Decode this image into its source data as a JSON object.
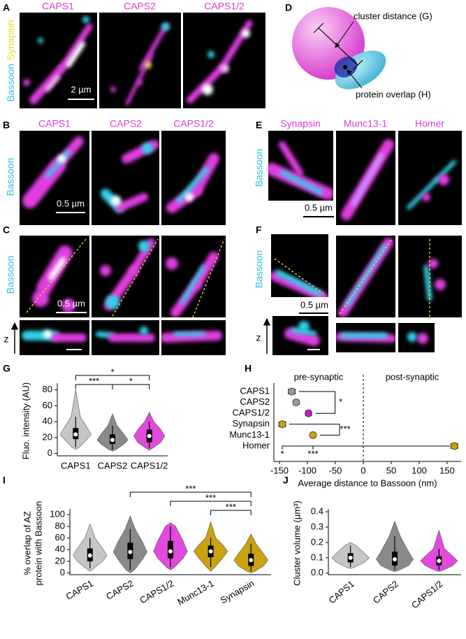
{
  "panel_labels": [
    "A",
    "B",
    "C",
    "D",
    "E",
    "F",
    "G",
    "H",
    "I",
    "J"
  ],
  "panel_A": {
    "titles": [
      "CAPS1",
      "CAPS2",
      "CAPS1/2"
    ],
    "channels": [
      "Bassoon",
      "Synapsin"
    ],
    "scale_bar": "2 µm"
  },
  "panel_B": {
    "titles": [
      "CAPS1",
      "CAPS2",
      "CAPS1/2"
    ],
    "channel": "Bassoon",
    "scale_bar": "0.5 µm"
  },
  "panel_C": {
    "channel": "Bassoon",
    "scale_bar": "0.5 µm",
    "axis": "z"
  },
  "panel_D": {
    "labels": [
      "cluster distance (G)",
      "protein overlap (H)"
    ]
  },
  "panel_E": {
    "titles": [
      "Synapsin",
      "Munc13-1",
      "Homer"
    ],
    "channel": "Bassoon",
    "scale_bar": "0.5 µm"
  },
  "panel_F": {
    "channel": "Bassoon",
    "scale_bar": "0.5 µm",
    "axis": "z"
  },
  "chart_data": [
    {
      "type": "violin",
      "ylabel": "Fluo. intensity (AU)",
      "categories": [
        "CAPS1",
        "CAPS2",
        "CAPS1/2"
      ],
      "colors": [
        "#c6c6c6",
        "#8a8a8a",
        "#e24ade"
      ],
      "stats": [
        {
          "min": 5,
          "whisker_low": 8,
          "q1": 18,
          "median": 24,
          "q3": 32,
          "whisker_high": 46,
          "max": 80
        },
        {
          "min": 3,
          "whisker_low": 5,
          "q1": 12,
          "median": 17,
          "q3": 24,
          "whisker_high": 35,
          "max": 50
        },
        {
          "min": 4,
          "whisker_low": 7,
          "q1": 14,
          "median": 22,
          "q3": 30,
          "whisker_high": 40,
          "max": 52
        }
      ],
      "ylim": [
        -3,
        85
      ],
      "yticks": [
        0,
        20,
        40,
        60,
        80
      ],
      "significance": [
        {
          "from": 0,
          "to": 1,
          "label": "***"
        },
        {
          "from": 0,
          "to": 2,
          "label": "*"
        },
        {
          "from": 1,
          "to": 2,
          "label": "*"
        }
      ]
    },
    {
      "type": "dot",
      "xlabel": "Average distance to Bassoon (nm)",
      "categories": [
        "CAPS1",
        "CAPS2",
        "CAPS1/2",
        "Synapsin",
        "Munc13-1",
        "Homer"
      ],
      "values": [
        -128,
        -120,
        -98,
        -145,
        -90,
        163
      ],
      "errors": [
        6,
        5,
        5,
        6,
        4,
        6
      ],
      "colors": [
        "#9a9a9a",
        "#9a9a9a",
        "#c21cc2",
        "#c9a20c",
        "#c9a20c",
        "#c9a20c"
      ],
      "xlim": [
        -160,
        175
      ],
      "xticks": [
        -150,
        -100,
        -50,
        0,
        50,
        100,
        150
      ],
      "reference_line": 0,
      "annotations": [
        "pre-synaptic",
        "post-synaptic"
      ],
      "significance": [
        {
          "from": 0,
          "to": 2,
          "label": "*"
        },
        {
          "from": 3,
          "to": 4,
          "label": "***"
        },
        {
          "from": 3,
          "to": 5,
          "label": "*"
        },
        {
          "from": 4,
          "to": 5,
          "label": "***"
        }
      ]
    },
    {
      "type": "violin",
      "ylabel": [
        "% overlap of AZ",
        "protein with Bassoon"
      ],
      "categories": [
        "CAPS1",
        "CAPS2",
        "CAPS1/2",
        "Munc13-1",
        "Synapsin"
      ],
      "colors": [
        "#c6c6c6",
        "#8a8a8a",
        "#e24ade",
        "#c9a20c",
        "#c9a20c"
      ],
      "stats": [
        {
          "min": 3,
          "whisker_low": 8,
          "q1": 20,
          "median": 30,
          "q3": 42,
          "whisker_high": 60,
          "max": 84
        },
        {
          "min": 0,
          "whisker_low": 5,
          "q1": 24,
          "median": 36,
          "q3": 52,
          "whisker_high": 75,
          "max": 98
        },
        {
          "min": 5,
          "whisker_low": 10,
          "q1": 25,
          "median": 37,
          "q3": 55,
          "whisker_high": 80,
          "max": 86
        },
        {
          "min": 3,
          "whisker_low": 10,
          "q1": 27,
          "median": 37,
          "q3": 47,
          "whisker_high": 60,
          "max": 88
        },
        {
          "min": 0,
          "whisker_low": 3,
          "q1": 12,
          "median": 22,
          "q3": 33,
          "whisker_high": 50,
          "max": 67
        }
      ],
      "ylim": [
        -3,
        105
      ],
      "yticks": [
        0,
        20,
        40,
        60,
        80,
        100
      ],
      "xtick_rotation": -30,
      "significance": [
        {
          "from": 1,
          "to": 4,
          "label": "***"
        },
        {
          "from": 2,
          "to": 4,
          "label": "***"
        },
        {
          "from": 3,
          "to": 4,
          "label": "***"
        }
      ]
    },
    {
      "type": "violin",
      "ylabel": "Cluster volume (µm³)",
      "categories": [
        "CAPS1",
        "CAPS2",
        "CAPS1/2"
      ],
      "colors": [
        "#c6c6c6",
        "#8a8a8a",
        "#e24ade"
      ],
      "stats": [
        {
          "min": 0.03,
          "whisker_low": 0.04,
          "q1": 0.07,
          "median": 0.1,
          "q3": 0.13,
          "whisker_high": 0.18,
          "max": 0.2
        },
        {
          "min": 0.01,
          "whisker_low": 0.02,
          "q1": 0.05,
          "median": 0.09,
          "q3": 0.14,
          "whisker_high": 0.24,
          "max": 0.34
        },
        {
          "min": 0.01,
          "whisker_low": 0.02,
          "q1": 0.05,
          "median": 0.08,
          "q3": 0.11,
          "whisker_high": 0.16,
          "max": 0.28
        }
      ],
      "ylim": [
        -0.01,
        0.4
      ],
      "yticks": [
        {
          "value": 0,
          "label": "0.0"
        },
        0.1,
        0.2,
        0.3,
        0.4
      ],
      "xtick_rotation": -40,
      "significance": []
    }
  ]
}
